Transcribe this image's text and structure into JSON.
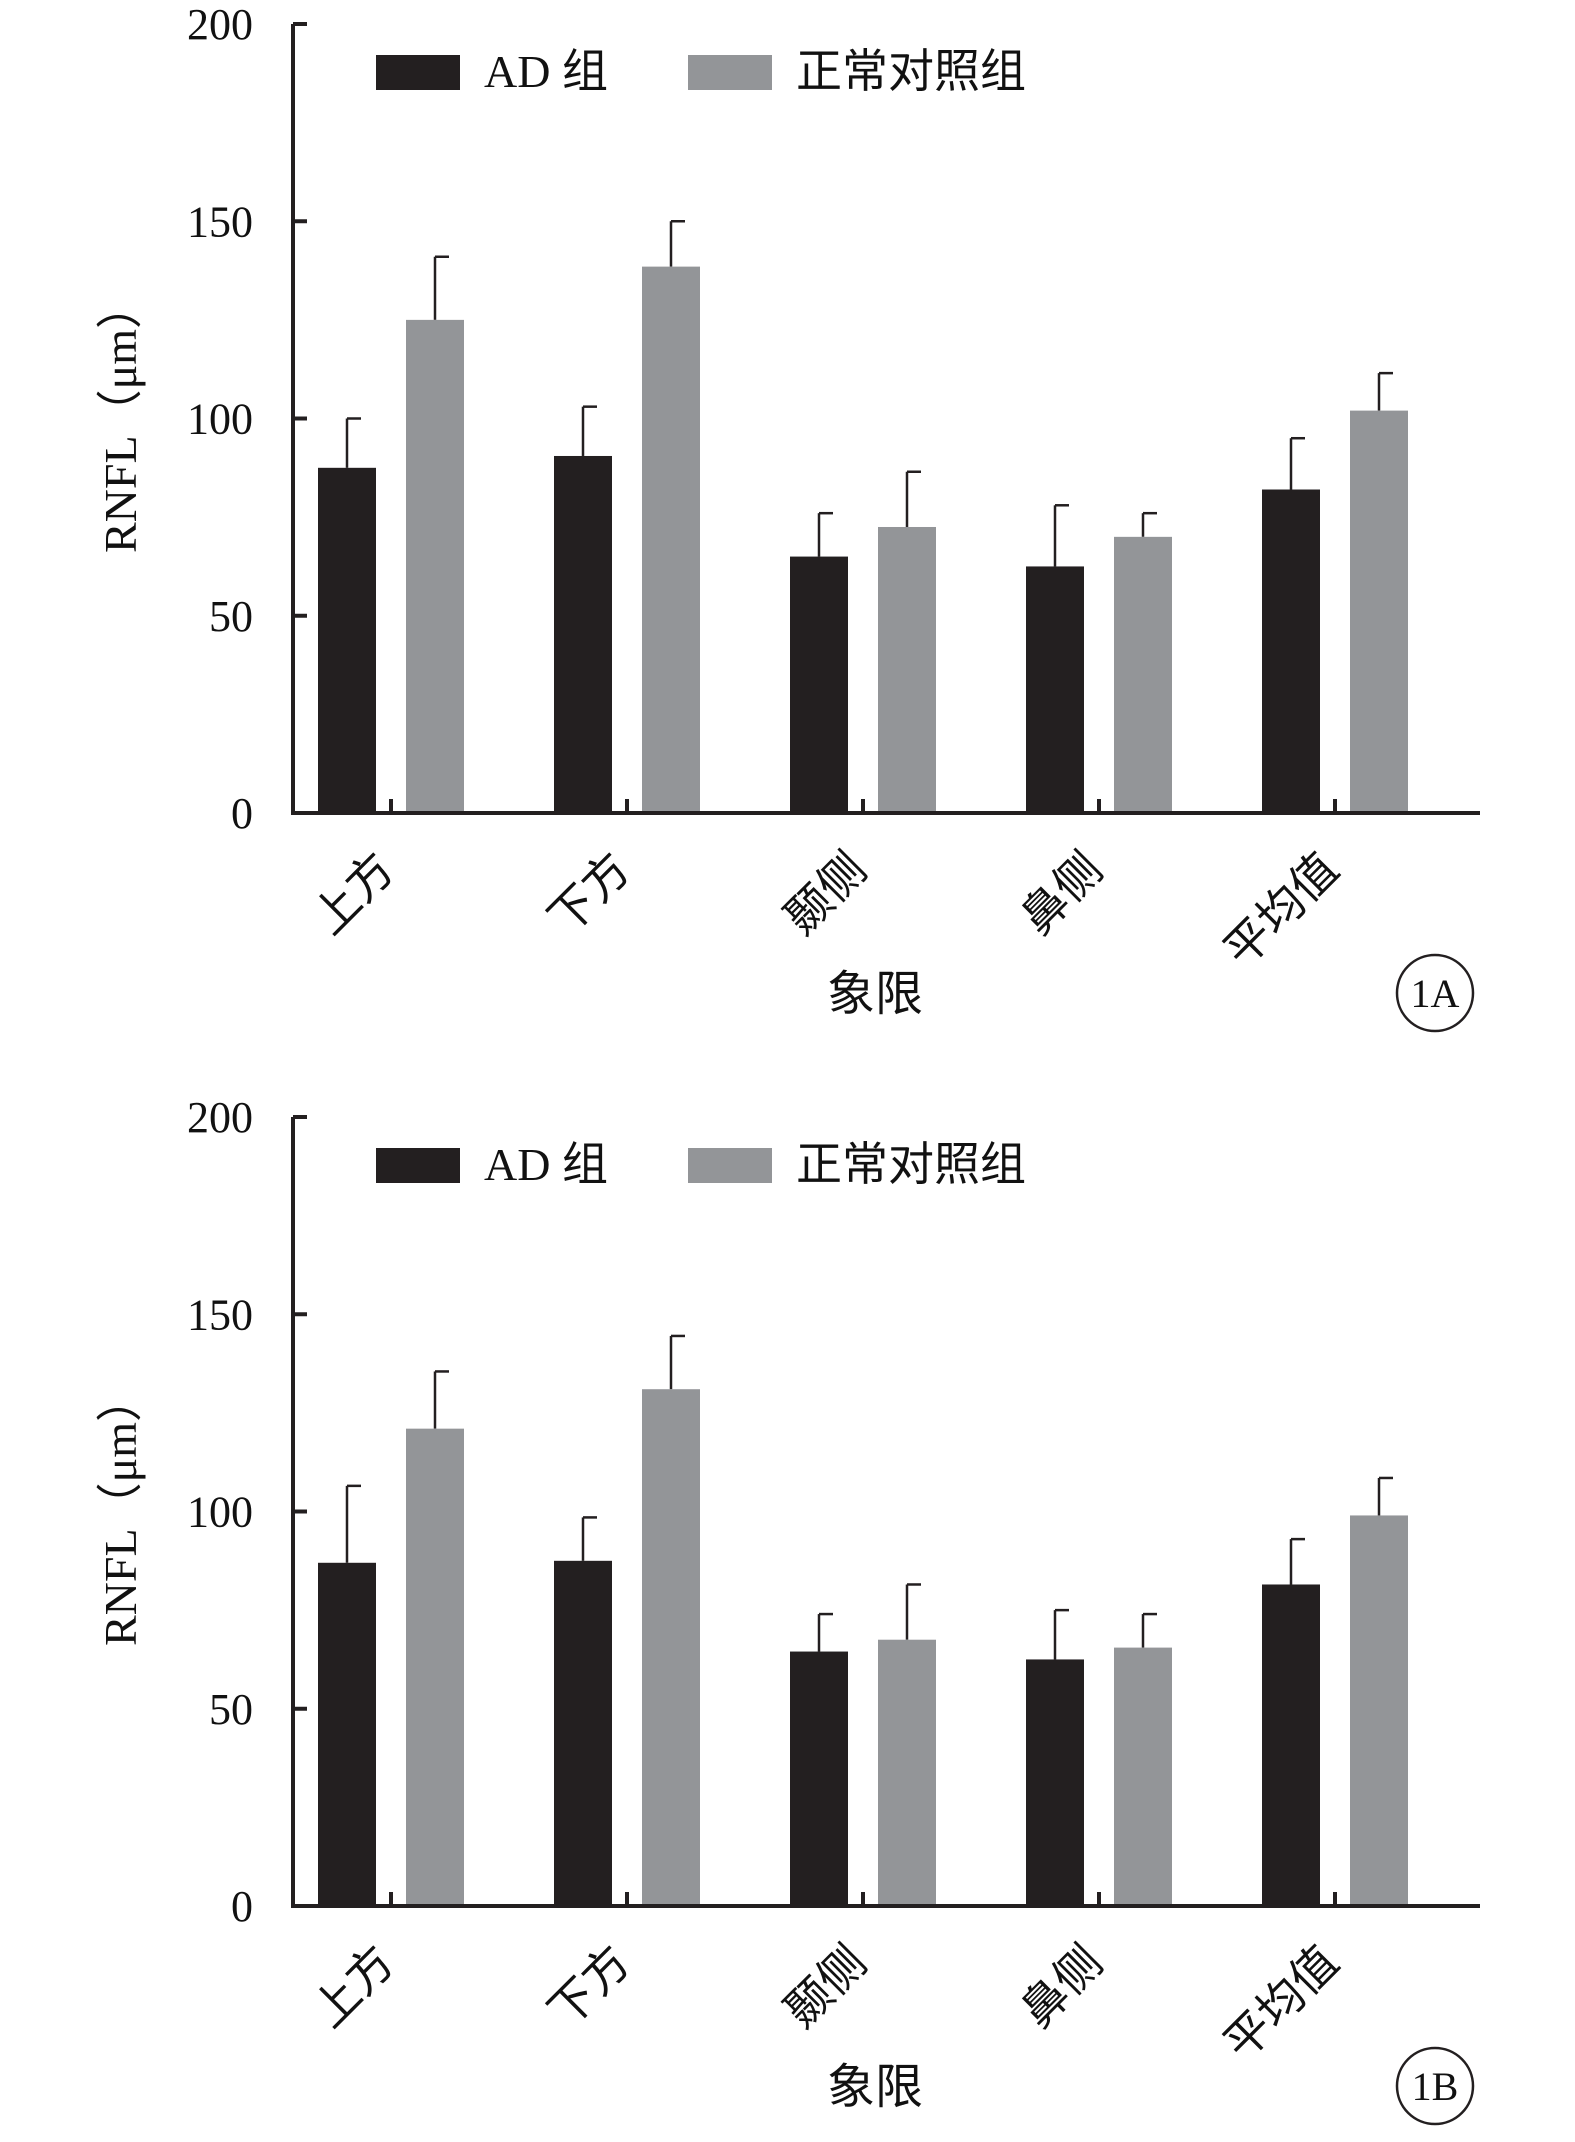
{
  "colors": {
    "ad_group": "#231f20",
    "control_group": "#939598",
    "axis": "#231f20"
  },
  "chart_data": [
    {
      "type": "bar",
      "panel_label": "1A",
      "xlabel": "象限",
      "ylabel": "RNFL（μm）",
      "ylim": [
        0,
        200
      ],
      "yticks": [
        "0",
        "50",
        "100",
        "150",
        "200"
      ],
      "categories": [
        "上方",
        "下方",
        "颞侧",
        "鼻侧",
        "平均值"
      ],
      "legend_position": "top-left",
      "series": [
        {
          "name": "AD 组",
          "values": [
            87.5,
            90.5,
            65,
            62.5,
            82
          ],
          "error": [
            12.5,
            12.5,
            11,
            15.5,
            13
          ]
        },
        {
          "name": "正常对照组",
          "values": [
            125,
            138.5,
            72.5,
            70,
            102
          ],
          "error": [
            16,
            11.5,
            14,
            6,
            9.5
          ]
        }
      ]
    },
    {
      "type": "bar",
      "panel_label": "1B",
      "xlabel": "象限",
      "ylabel": "RNFL（μm）",
      "ylim": [
        0,
        200
      ],
      "yticks": [
        "0",
        "50",
        "100",
        "150",
        "200"
      ],
      "categories": [
        "上方",
        "下方",
        "颞侧",
        "鼻侧",
        "平均值"
      ],
      "legend_position": "top-left",
      "series": [
        {
          "name": "AD 组",
          "values": [
            87,
            87.5,
            64.5,
            62.5,
            81.5
          ],
          "error": [
            19.5,
            11,
            9.5,
            12.5,
            11.5
          ]
        },
        {
          "name": "正常对照组",
          "values": [
            121,
            131,
            67.5,
            65.5,
            99
          ],
          "error": [
            14.5,
            13.5,
            14,
            8.5,
            9.5
          ]
        }
      ]
    }
  ]
}
